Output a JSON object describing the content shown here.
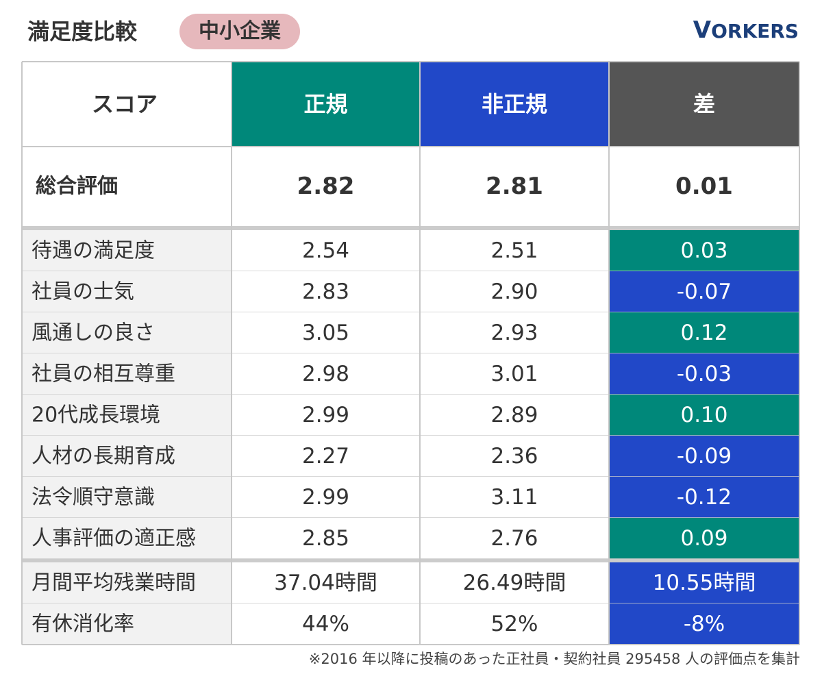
{
  "header": {
    "title": "満足度比較",
    "badge": "中小企業",
    "logo_first": "V",
    "logo_rest": "ORKERS"
  },
  "colors": {
    "regular": "#00887a",
    "nonregular": "#2148c8",
    "diff_header": "#555555",
    "badge": "#e6b8bc",
    "logo": "#1c3f7a"
  },
  "chart_data": {
    "type": "table",
    "columns": [
      "スコア",
      "正規",
      "非正規",
      "差"
    ],
    "overall": {
      "label": "総合評価",
      "regular": "2.82",
      "nonregular": "2.81",
      "diff": "0.01"
    },
    "rows": [
      {
        "label": "待遇の満足度",
        "regular": "2.54",
        "nonregular": "2.51",
        "diff": "0.03",
        "diff_sign": "positive"
      },
      {
        "label": "社員の士気",
        "regular": "2.83",
        "nonregular": "2.90",
        "diff": "-0.07",
        "diff_sign": "negative"
      },
      {
        "label": "風通しの良さ",
        "regular": "3.05",
        "nonregular": "2.93",
        "diff": "0.12",
        "diff_sign": "positive"
      },
      {
        "label": "社員の相互尊重",
        "regular": "2.98",
        "nonregular": "3.01",
        "diff": "-0.03",
        "diff_sign": "negative"
      },
      {
        "label": "20代成長環境",
        "regular": "2.99",
        "nonregular": "2.89",
        "diff": "0.10",
        "diff_sign": "positive"
      },
      {
        "label": "人材の長期育成",
        "regular": "2.27",
        "nonregular": "2.36",
        "diff": "-0.09",
        "diff_sign": "negative"
      },
      {
        "label": "法令順守意識",
        "regular": "2.99",
        "nonregular": "3.11",
        "diff": "-0.12",
        "diff_sign": "negative"
      },
      {
        "label": "人事評価の適正感",
        "regular": "2.85",
        "nonregular": "2.76",
        "diff": "0.09",
        "diff_sign": "positive"
      }
    ],
    "extra_rows": [
      {
        "label": "月間平均残業時間",
        "regular": "37.04時間",
        "nonregular": "26.49時間",
        "diff": "10.55時間",
        "diff_sign": "negative"
      },
      {
        "label": "有休消化率",
        "regular": "44%",
        "nonregular": "52%",
        "diff": "-8%",
        "diff_sign": "negative"
      }
    ]
  },
  "footnote": "※2016 年以降に投稿のあった正社員・契約社員 295458 人の評価点を集計"
}
